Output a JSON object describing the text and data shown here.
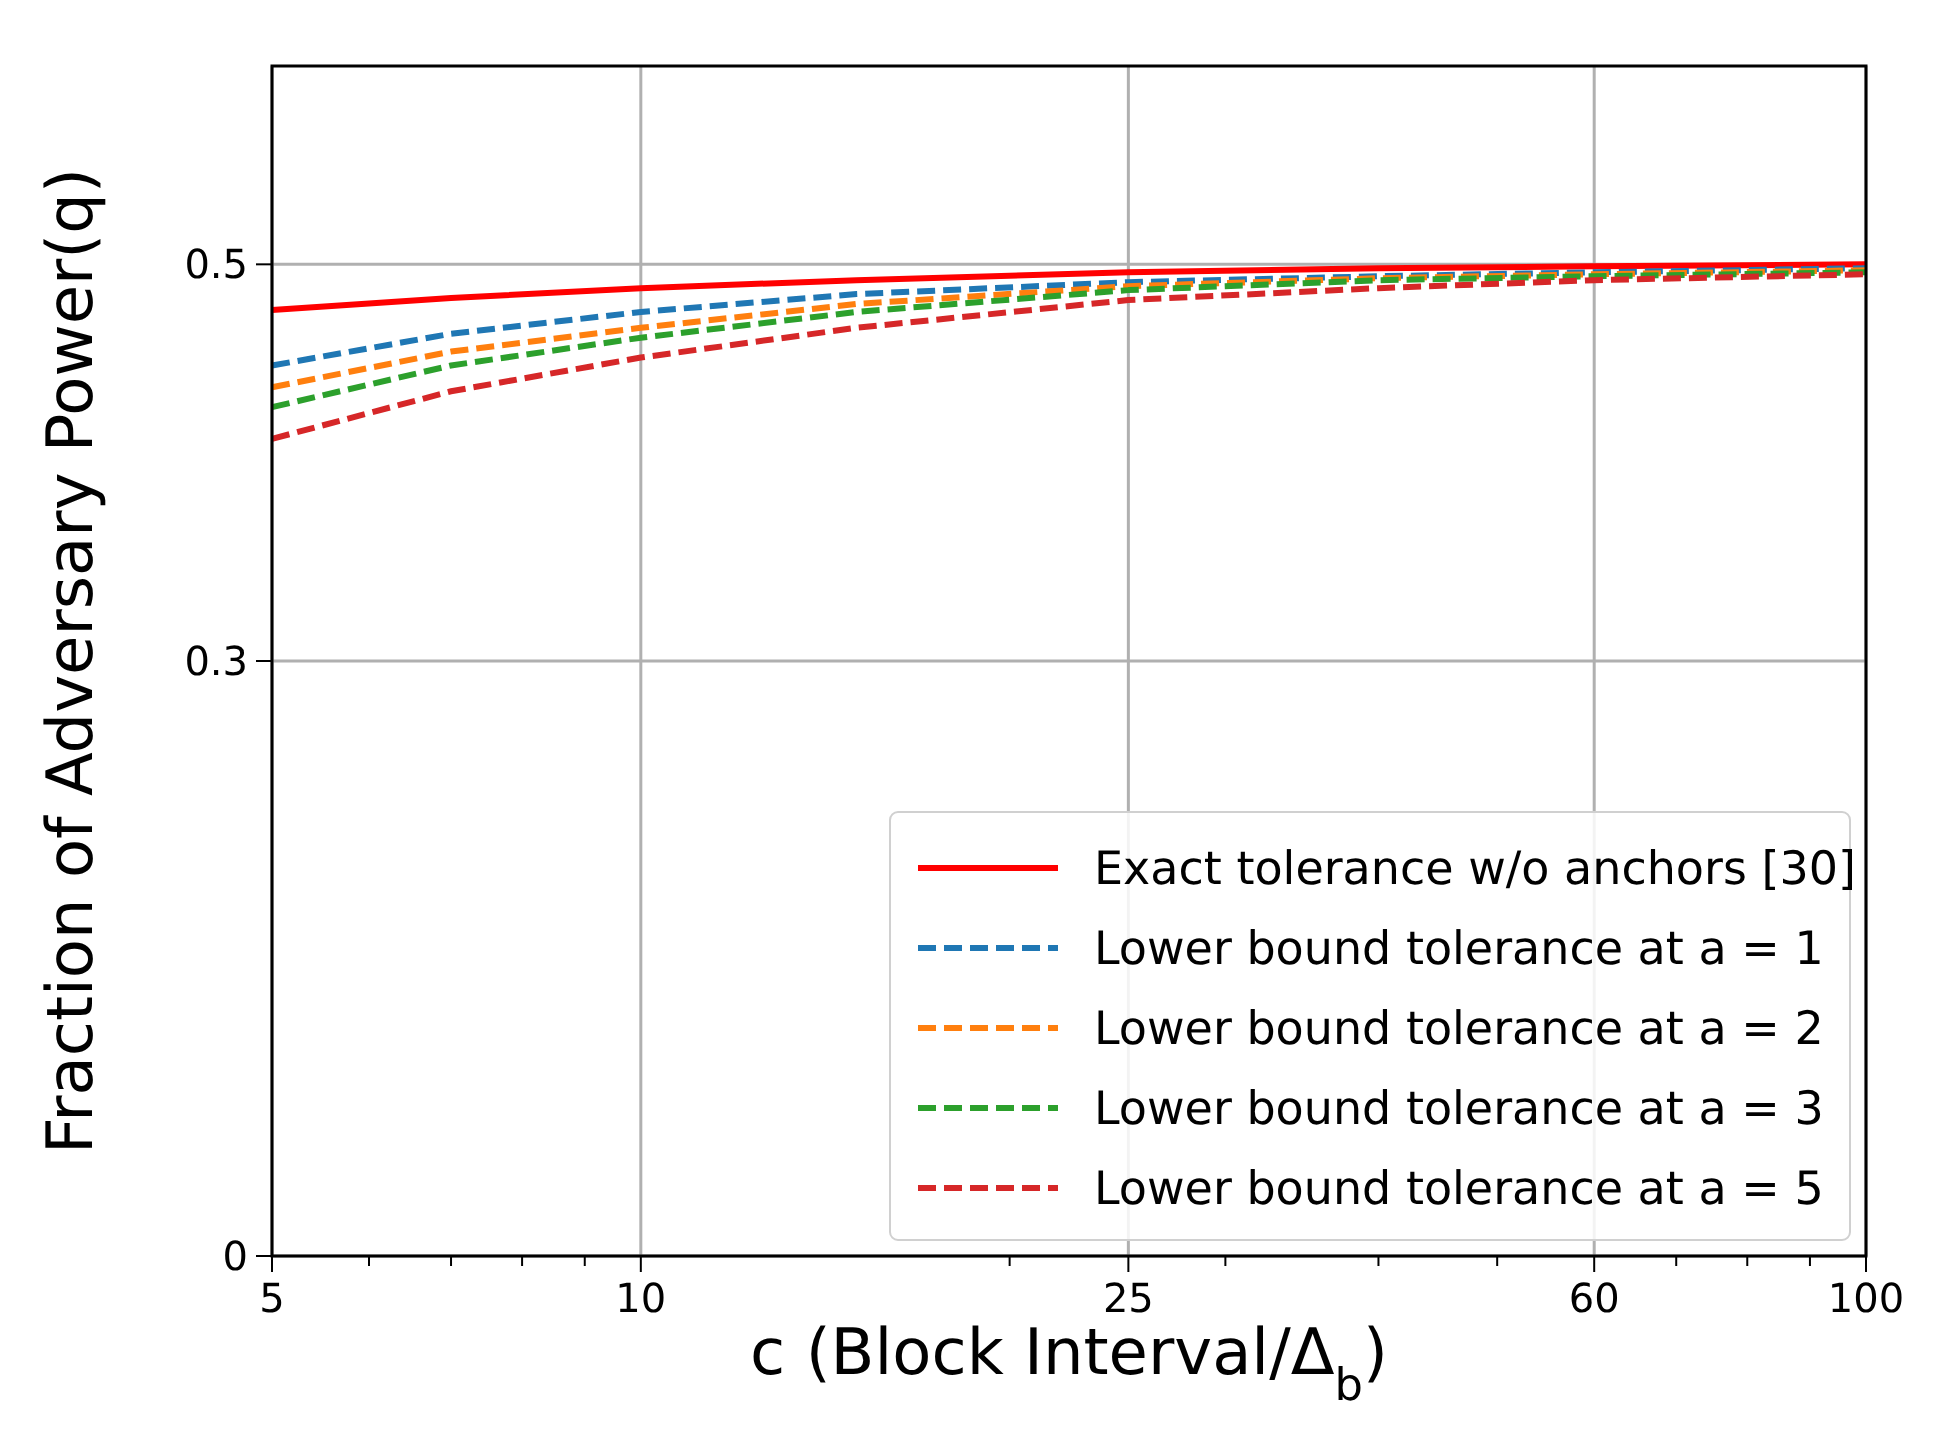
{
  "chart_data": {
    "type": "line",
    "xlabel": "c (Block Interval/Δ$_{b}$)",
    "ylabel": "Fraction of Adversary Power(q)",
    "log": "x",
    "x": [
      5,
      7,
      10,
      15,
      25,
      40,
      60,
      100
    ],
    "xlim": [
      5,
      100
    ],
    "xticks": [
      5,
      {
        "value": 6,
        "label": null
      },
      {
        "value": 7,
        "label": null
      },
      {
        "value": 8,
        "label": null
      },
      {
        "value": 9,
        "label": null
      },
      10,
      {
        "value": 20,
        "label": null
      },
      25,
      {
        "value": 30,
        "label": null
      },
      {
        "value": 40,
        "label": null
      },
      {
        "value": 50,
        "label": null
      },
      60,
      {
        "value": 70,
        "label": null
      },
      {
        "value": 80,
        "label": null
      },
      {
        "value": 90,
        "label": null
      },
      100
    ],
    "ylim": [
      0,
      0.6
    ],
    "yticks": [
      0,
      0.3,
      0.5
    ],
    "grid": true,
    "legend": "bottom right",
    "marker": "none",
    "series": [
      {
        "name": "Exact tolerance w/o anchors [30]",
        "color": "#ff0000",
        "line_style": "solid",
        "values": [
          0.477,
          0.483,
          0.488,
          0.492,
          0.496,
          0.498,
          0.499,
          0.5
        ]
      },
      {
        "name": "Lower bound tolerance at a = 1",
        "color": "#1f77b4",
        "line_style": "dashed",
        "values": [
          0.449,
          0.465,
          0.476,
          0.485,
          0.491,
          0.494,
          0.496,
          0.498
        ]
      },
      {
        "name": "Lower bound tolerance at a = 2",
        "color": "#ff7f0e",
        "line_style": "dashed",
        "values": [
          0.438,
          0.456,
          0.468,
          0.48,
          0.489,
          0.493,
          0.495,
          0.497
        ]
      },
      {
        "name": "Lower bound tolerance at a = 3",
        "color": "#2ca02c",
        "line_style": "dashed",
        "values": [
          0.428,
          0.449,
          0.463,
          0.476,
          0.487,
          0.492,
          0.494,
          0.496
        ]
      },
      {
        "name": "Lower bound tolerance at a = 5",
        "color": "#d62728",
        "line_style": "dashed",
        "values": [
          0.412,
          0.436,
          0.453,
          0.468,
          0.482,
          0.488,
          0.492,
          0.495
        ]
      }
    ]
  }
}
